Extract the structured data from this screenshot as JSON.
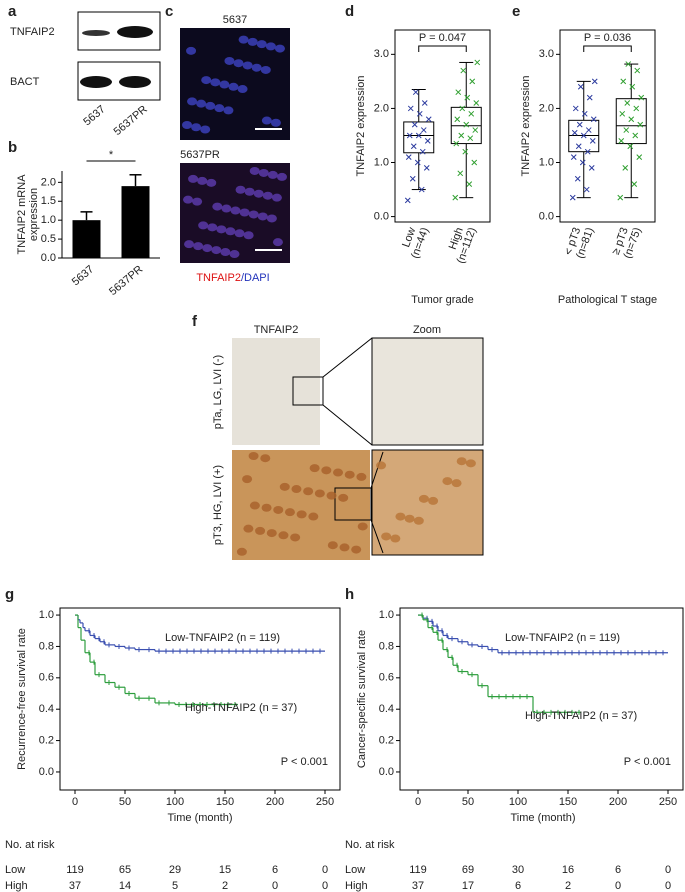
{
  "panels": {
    "a": {
      "label": "a",
      "bands": [
        "TNFAIP2",
        "BACT"
      ],
      "lanes": [
        "5637",
        "5637PR"
      ]
    },
    "c": {
      "label": "c",
      "images": [
        "5637",
        "5637PR"
      ],
      "legend": [
        "TNFAIP2",
        "/DAPI"
      ]
    },
    "f": {
      "label": "f",
      "columns": [
        "TNFAIP2",
        "Zoom"
      ],
      "rows": [
        "pTa, LG, LVI (-)",
        "pT3, HG, LVI (+)"
      ]
    }
  },
  "chart_data": [
    {
      "type": "bar",
      "panel": "b",
      "ylabel": [
        "TNFAIP2 mRNA",
        "expression"
      ],
      "categories": [
        "5637",
        "5637PR"
      ],
      "values": [
        1.0,
        1.9
      ],
      "errors": [
        0.22,
        0.3
      ],
      "color": "#000000",
      "ylim": [
        0,
        2.3
      ],
      "yticks": [
        {
          "value": 0,
          "label": "0.0"
        },
        {
          "value": 0.5,
          "label": "0.5"
        },
        {
          "value": 1,
          "label": "1.0"
        },
        {
          "value": 1.5,
          "label": "1.5"
        },
        {
          "value": 2,
          "label": "2.0"
        }
      ],
      "annotation": "*"
    },
    {
      "type": "box",
      "panel": "d",
      "ylabel": "TNFAIP2 expression",
      "xlabel": "Tumor grade",
      "categories": [
        [
          "Low",
          "(n=44)"
        ],
        [
          "High",
          "(n=112)"
        ]
      ],
      "colors": [
        "#2b3a9e",
        "#2e9e2e"
      ],
      "boxes": [
        {
          "min": 0.5,
          "q1": 1.18,
          "median": 1.5,
          "q3": 1.75,
          "max": 2.35,
          "points": [
            0.3,
            0.5,
            0.7,
            0.9,
            1.0,
            1.1,
            1.2,
            1.3,
            1.4,
            1.5,
            1.5,
            1.6,
            1.7,
            1.8,
            1.9,
            2.0,
            2.1,
            2.3
          ]
        },
        {
          "min": 0.35,
          "q1": 1.35,
          "median": 1.68,
          "q3": 2.02,
          "max": 2.85,
          "points": [
            0.35,
            0.6,
            0.8,
            1.0,
            1.2,
            1.35,
            1.45,
            1.5,
            1.6,
            1.7,
            1.8,
            1.9,
            2.0,
            2.1,
            2.2,
            2.3,
            2.5,
            2.7,
            2.85
          ]
        }
      ],
      "annotation": "P = 0.047",
      "ylim": [
        -0.1,
        3.45
      ],
      "yticks": [
        {
          "value": 0,
          "label": "0.0"
        },
        {
          "value": 1,
          "label": "1.0"
        },
        {
          "value": 2,
          "label": "2.0"
        },
        {
          "value": 3,
          "label": "3.0"
        }
      ]
    },
    {
      "type": "box",
      "panel": "e",
      "ylabel": "TNFAIP2 expression",
      "xlabel": "Pathological T stage",
      "categories": [
        [
          "< pT3",
          "(n=81)"
        ],
        [
          "≥ pT3",
          "(n=75)"
        ]
      ],
      "colors": [
        "#2b3a9e",
        "#2e9e2e"
      ],
      "boxes": [
        {
          "min": 0.35,
          "q1": 1.2,
          "median": 1.5,
          "q3": 1.78,
          "max": 2.5,
          "points": [
            0.35,
            0.5,
            0.7,
            0.9,
            1.0,
            1.1,
            1.2,
            1.3,
            1.4,
            1.5,
            1.55,
            1.6,
            1.7,
            1.8,
            1.9,
            2.0,
            2.2,
            2.4,
            2.5
          ]
        },
        {
          "min": 0.35,
          "q1": 1.35,
          "median": 1.68,
          "q3": 2.18,
          "max": 2.82,
          "points": [
            0.35,
            0.6,
            0.9,
            1.1,
            1.3,
            1.4,
            1.5,
            1.6,
            1.7,
            1.8,
            1.9,
            2.0,
            2.1,
            2.2,
            2.4,
            2.5,
            2.7,
            2.82
          ]
        }
      ],
      "annotation": "P = 0.036",
      "ylim": [
        -0.1,
        3.45
      ],
      "yticks": [
        {
          "value": 0,
          "label": "0.0"
        },
        {
          "value": 1,
          "label": "1.0"
        },
        {
          "value": 2,
          "label": "2.0"
        },
        {
          "value": 3,
          "label": "3.0"
        }
      ]
    },
    {
      "type": "km",
      "panel": "g",
      "ylabel": "Recurrence-free survival rate",
      "xlabel": "Time (month)",
      "xlim": [
        -15,
        265
      ],
      "xticks": [
        0,
        50,
        100,
        150,
        200,
        250
      ],
      "ylim": [
        -0.115,
        1.045
      ],
      "yticks": [
        {
          "value": 0,
          "label": "0.0"
        },
        {
          "value": 0.2,
          "label": "0.2"
        },
        {
          "value": 0.4,
          "label": "0.4"
        },
        {
          "value": 0.6,
          "label": "0.6"
        },
        {
          "value": 0.8,
          "label": "0.8"
        },
        {
          "value": 1,
          "label": "1.0"
        }
      ],
      "series": [
        {
          "name": "Low-TNFAIP2 (n = 119)",
          "color": "#3a4fb0",
          "x": [
            0,
            3,
            5,
            8,
            10,
            15,
            20,
            25,
            30,
            40,
            50,
            60,
            70,
            80,
            250
          ],
          "values": [
            1,
            0.97,
            0.95,
            0.92,
            0.9,
            0.87,
            0.85,
            0.83,
            0.81,
            0.8,
            0.79,
            0.78,
            0.78,
            0.77,
            0.77
          ]
        },
        {
          "name": "High-TNFAIP2 (n = 37)",
          "color": "#2e9e3e",
          "x": [
            0,
            3,
            6,
            10,
            15,
            20,
            30,
            40,
            50,
            60,
            70,
            80,
            90,
            100,
            163
          ],
          "values": [
            1,
            0.92,
            0.84,
            0.76,
            0.7,
            0.62,
            0.57,
            0.54,
            0.5,
            0.47,
            0.47,
            0.44,
            0.44,
            0.43,
            0.43
          ]
        }
      ],
      "annotation": "P < 0.001",
      "risk_table": {
        "title": "No. at risk",
        "rows": [
          {
            "name": "Low",
            "values": [
              119,
              65,
              29,
              15,
              6,
              0
            ]
          },
          {
            "name": "High",
            "values": [
              37,
              14,
              5,
              2,
              0,
              0
            ]
          }
        ]
      }
    },
    {
      "type": "km",
      "panel": "h",
      "ylabel": "Cancer-specific survival rate",
      "xlabel": "Time (month)",
      "xlim": [
        -18,
        265
      ],
      "xticks": [
        0,
        50,
        100,
        150,
        200,
        250
      ],
      "ylim": [
        -0.115,
        1.045
      ],
      "yticks": [
        {
          "value": 0,
          "label": "0.0"
        },
        {
          "value": 0.2,
          "label": "0.2"
        },
        {
          "value": 0.4,
          "label": "0.4"
        },
        {
          "value": 0.6,
          "label": "0.6"
        },
        {
          "value": 0.8,
          "label": "0.8"
        },
        {
          "value": 1,
          "label": "1.0"
        }
      ],
      "series": [
        {
          "name": "Low-TNFAIP2 (n = 119)",
          "color": "#3a4fb0",
          "x": [
            0,
            5,
            10,
            15,
            20,
            25,
            30,
            40,
            50,
            60,
            70,
            80,
            250
          ],
          "values": [
            1,
            0.98,
            0.96,
            0.93,
            0.9,
            0.87,
            0.85,
            0.83,
            0.81,
            0.8,
            0.78,
            0.76,
            0.76
          ]
        },
        {
          "name": "High-TNFAIP2 (n = 37)",
          "color": "#2e9e3e",
          "x": [
            0,
            5,
            10,
            15,
            20,
            25,
            30,
            35,
            40,
            50,
            60,
            70,
            115,
            163
          ],
          "values": [
            1,
            0.97,
            0.92,
            0.89,
            0.84,
            0.78,
            0.73,
            0.68,
            0.64,
            0.62,
            0.55,
            0.48,
            0.38,
            0.38
          ]
        }
      ],
      "annotation": "P < 0.001",
      "risk_table": {
        "title": "No. at risk",
        "rows": [
          {
            "name": "Low",
            "values": [
              119,
              69,
              30,
              16,
              6,
              0
            ]
          },
          {
            "name": "High",
            "values": [
              37,
              17,
              6,
              2,
              0,
              0
            ]
          }
        ]
      }
    }
  ]
}
